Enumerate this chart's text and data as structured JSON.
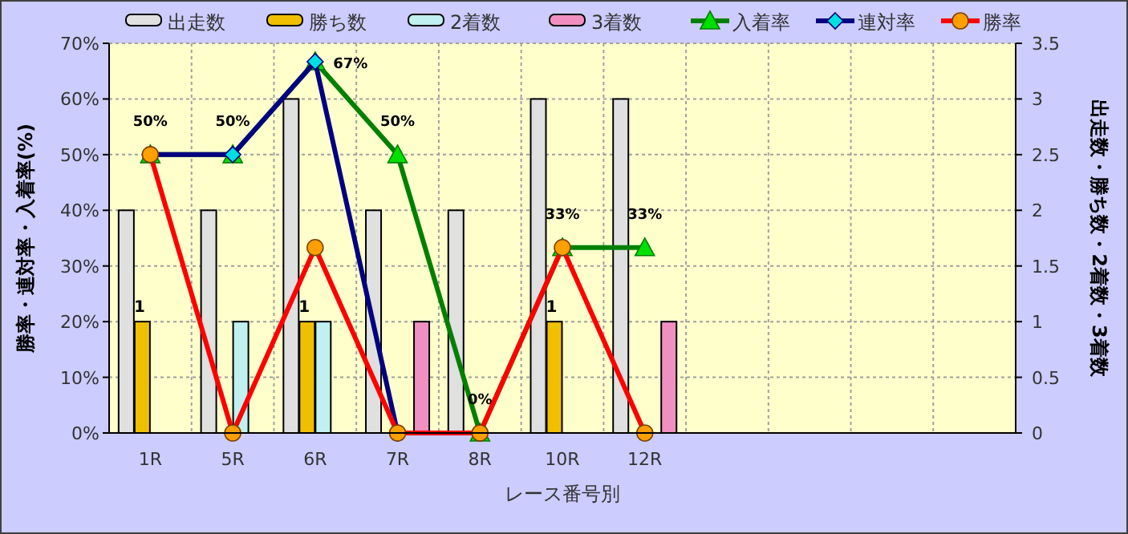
{
  "chart_data": {
    "type": "bar",
    "xlabel": "レース番号別",
    "ylabel": "勝率・連対率・入着率(%)",
    "y2label": "出走数・勝ち数・2着数・3着数",
    "categories": [
      "1R",
      "5R",
      "6R",
      "7R",
      "8R",
      "10R",
      "12R",
      null,
      null,
      null,
      null
    ],
    "series": [
      {
        "name": "出走数",
        "axis": "y2",
        "color": "#e0e0e0",
        "values": [
          2,
          2,
          3,
          2,
          2,
          3,
          3,
          null,
          null,
          null,
          null
        ]
      },
      {
        "name": "勝ち数",
        "axis": "y2",
        "color": "#f0c000",
        "values": [
          1,
          0,
          1,
          0,
          0,
          1,
          0,
          null,
          null,
          null,
          null
        ],
        "value_labels": [
          "1",
          null,
          "1",
          null,
          null,
          "1",
          null,
          null,
          null,
          null,
          null
        ]
      },
      {
        "name": "2着数",
        "axis": "y2",
        "color": "#c0f0f0",
        "values": [
          0,
          1,
          1,
          0,
          0,
          0,
          0,
          null,
          null,
          null,
          null
        ]
      },
      {
        "name": "3着数",
        "axis": "y2",
        "color": "#f090c0",
        "values": [
          0,
          0,
          0,
          1,
          0,
          0,
          1,
          null,
          null,
          null,
          null
        ]
      },
      {
        "name": "入着率",
        "type": "line",
        "marker": "triangle",
        "color": "#008000",
        "values": [
          50,
          50,
          66.7,
          50,
          0,
          33.3,
          33.3,
          null,
          null,
          null,
          null
        ],
        "value_labels": [
          "50%",
          "50%",
          "67%",
          "50%",
          "0%",
          "33%",
          "33%",
          null,
          null,
          null,
          null
        ]
      },
      {
        "name": "連対率",
        "type": "line",
        "marker": "diamond",
        "color": "#000080",
        "values": [
          50,
          50,
          66.7,
          0,
          0,
          null,
          null,
          null,
          null,
          null,
          null
        ]
      },
      {
        "name": "勝率",
        "type": "line",
        "marker": "circle",
        "color": "#ff0000",
        "values": [
          50,
          0,
          33.3,
          0,
          0,
          33.3,
          0,
          null,
          null,
          null,
          null
        ]
      }
    ],
    "ylim": [
      0,
      70
    ],
    "yticks": [
      {
        "value": 0,
        "label": "0%"
      },
      {
        "value": 10,
        "label": "10%"
      },
      {
        "value": 20,
        "label": "20%"
      },
      {
        "value": 30,
        "label": "30%"
      },
      {
        "value": 40,
        "label": "40%"
      },
      {
        "value": 50,
        "label": "50%"
      },
      {
        "value": 60,
        "label": "60%"
      },
      {
        "value": 70,
        "label": "70%"
      }
    ],
    "y2lim": [
      0,
      3.5
    ],
    "y2ticks": [
      0,
      0.5,
      1,
      1.5,
      2,
      2.5,
      3,
      3.5
    ],
    "grid": true,
    "legend": "top"
  }
}
